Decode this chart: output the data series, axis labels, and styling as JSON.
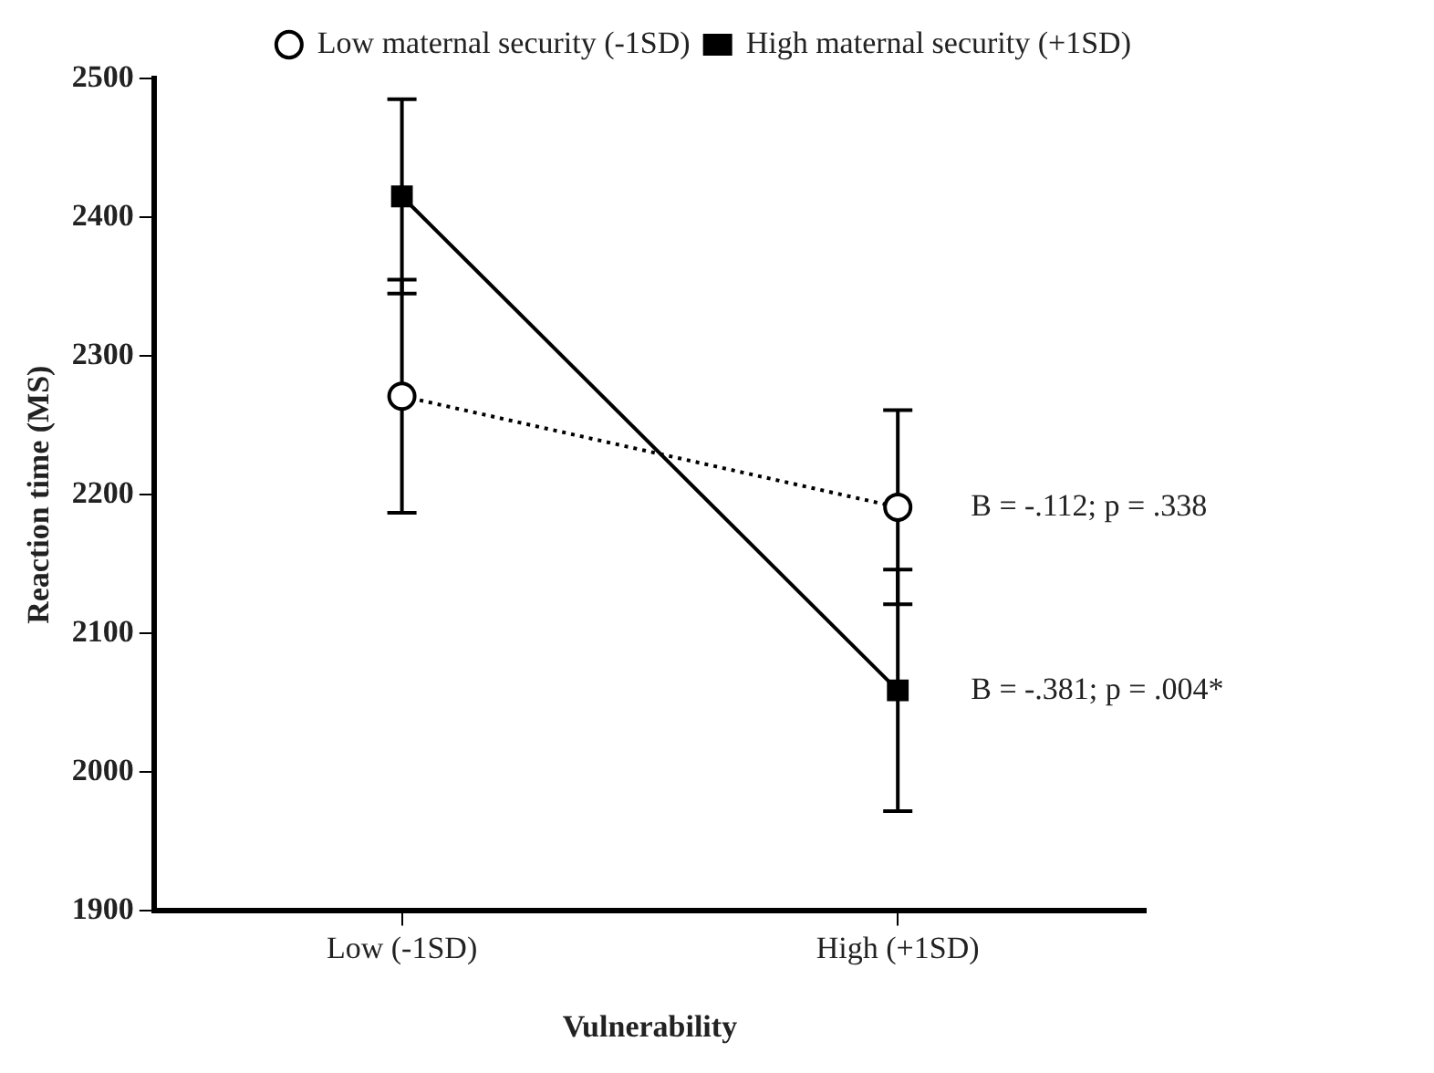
{
  "chart_data": {
    "type": "line",
    "categories": [
      "Low (-1SD)",
      "High (+1SD)"
    ],
    "series": [
      {
        "name": "Low maternal security (-1SD)",
        "color": "#000000",
        "values": [
          2271,
          2191
        ],
        "errors": [
          84,
          70
        ],
        "marker": "circle",
        "line_style": "dotted"
      },
      {
        "name": "High maternal security (+1SD)",
        "color": "#000000",
        "values": [
          2415,
          2059
        ],
        "errors": [
          70,
          87
        ],
        "marker": "square",
        "line_style": "solid"
      }
    ],
    "xlabel": "Vulnerability",
    "ylabel": "Reaction time (MS)",
    "ylim": [
      1900,
      2500
    ],
    "yticks": [
      1900,
      2000,
      2100,
      2200,
      2300,
      2400,
      2500
    ],
    "grid": false,
    "legend": "top right",
    "annotations": [
      {
        "text": "B = -.112; p = .338",
        "x": "High (+1SD)",
        "y": 2191
      },
      {
        "text": "B = -.381; p = .004*",
        "x": "High (+1SD)",
        "y": 2059
      }
    ]
  }
}
